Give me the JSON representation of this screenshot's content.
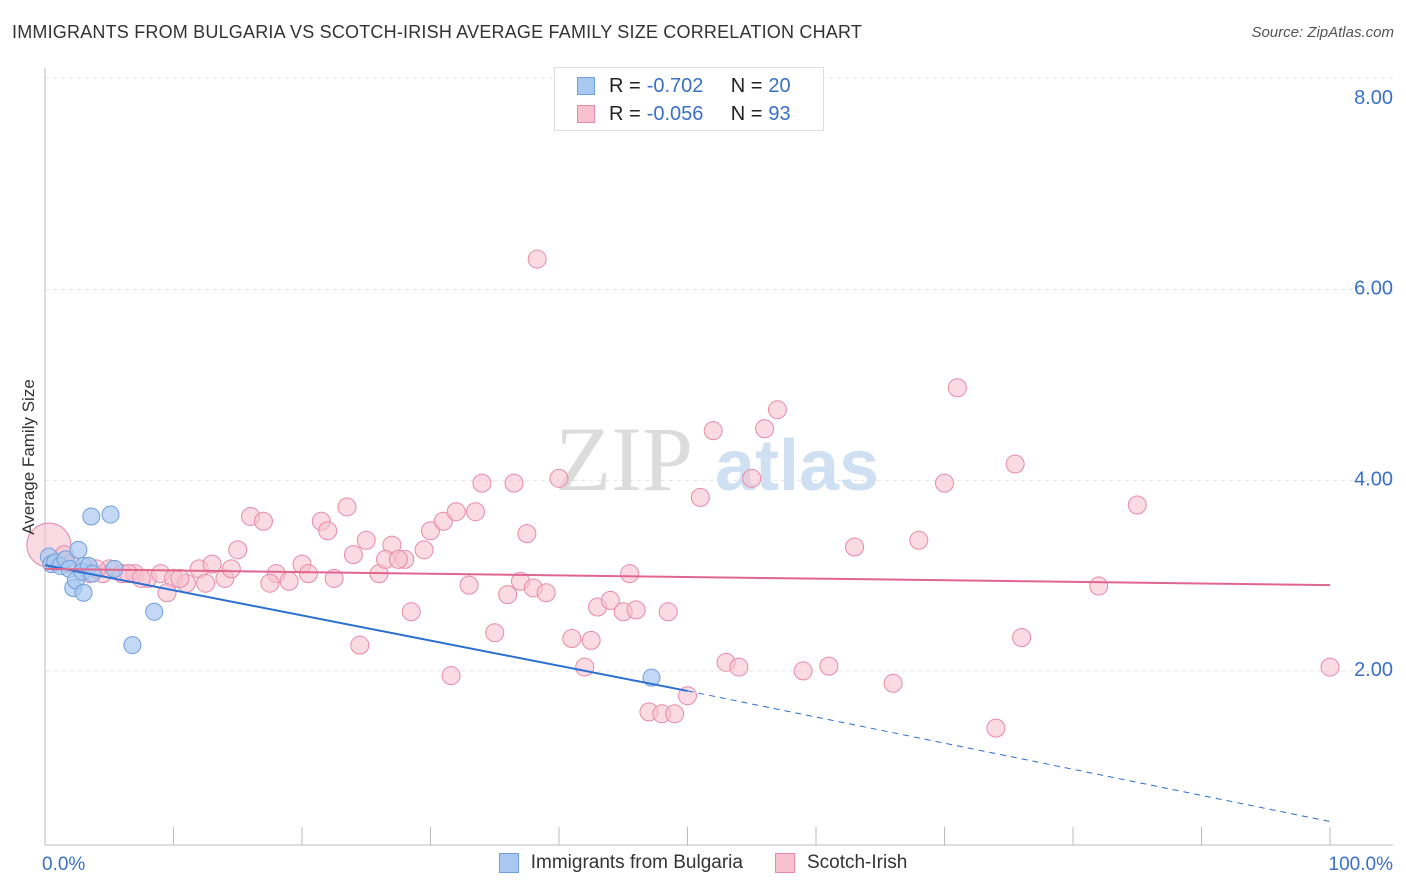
{
  "title": "IMMIGRANTS FROM BULGARIA VS SCOTCH-IRISH AVERAGE FAMILY SIZE CORRELATION CHART",
  "source": "Source: ZipAtlas.com",
  "watermark": {
    "zip": "ZIP",
    "atlas": "atlas"
  },
  "stats": [
    {
      "r_label": "R =",
      "r_value": "-0.702",
      "n_label": "N =",
      "n_value": "20",
      "color": "#a9c8f0",
      "border": "#6f9fdc"
    },
    {
      "r_label": "R =",
      "r_value": "-0.056",
      "n_label": "N =",
      "n_value": "93",
      "color": "#f7c1d1",
      "border": "#e88aa8"
    }
  ],
  "legend": [
    {
      "label": "Immigrants from Bulgaria",
      "color": "#a9c8f0",
      "border": "#6f9fdc"
    },
    {
      "label": "Scotch-Irish",
      "color": "#f7c1d1",
      "border": "#e88aa8"
    }
  ],
  "chart_data": {
    "type": "scatter",
    "title": "IMMIGRANTS FROM BULGARIA VS SCOTCH-IRISH AVERAGE FAMILY SIZE CORRELATION CHART",
    "xlabel": "",
    "ylabel": "Average Family Size",
    "xlim": [
      0,
      100
    ],
    "ylim": [
      0.35,
      8.2
    ],
    "x_tick_labels": [
      "0.0%",
      "100.0%"
    ],
    "y_ticks": [
      2.0,
      4.0,
      6.0,
      8.0
    ],
    "y_tick_labels": [
      "2.00",
      "4.00",
      "6.00",
      "8.00"
    ],
    "grid": true,
    "series": [
      {
        "name": "Immigrants from Bulgaria",
        "color": "#6f9fdc",
        "fill": "#a9c8f0",
        "line_color": "#2a6fd1",
        "points": [
          [
            0.3,
            3.18
          ],
          [
            0.5,
            3.1
          ],
          [
            0.8,
            3.12
          ],
          [
            1.2,
            3.08
          ],
          [
            1.6,
            3.15
          ],
          [
            1.9,
            3.05
          ],
          [
            2.2,
            2.85
          ],
          [
            2.4,
            2.93
          ],
          [
            2.6,
            3.25
          ],
          [
            3.0,
            3.08
          ],
          [
            2.9,
            3.02
          ],
          [
            3.0,
            2.8
          ],
          [
            3.4,
            3.08
          ],
          [
            3.7,
            3.0
          ],
          [
            3.6,
            3.6
          ],
          [
            5.1,
            3.62
          ],
          [
            5.4,
            3.05
          ],
          [
            8.5,
            2.6
          ],
          [
            6.8,
            2.25
          ],
          [
            47.2,
            1.91
          ]
        ],
        "trend": {
          "x": [
            0,
            50
          ],
          "y": [
            3.09,
            1.77
          ],
          "dashed_to": [
            100,
            0.4
          ]
        }
      },
      {
        "name": "Scotch-Irish",
        "color": "#e88aa8",
        "fill": "#f7c1d1",
        "line_color": "#e0668e",
        "points": [
          [
            0.3,
            3.3
          ],
          [
            1.5,
            3.2
          ],
          [
            2.0,
            3.1
          ],
          [
            3.5,
            3.0
          ],
          [
            4.5,
            3.0
          ],
          [
            5.0,
            3.05
          ],
          [
            6.0,
            3.0
          ],
          [
            7.0,
            3.0
          ],
          [
            8.0,
            2.95
          ],
          [
            9.0,
            3.0
          ],
          [
            10.0,
            2.95
          ],
          [
            11.0,
            2.9
          ],
          [
            12.0,
            3.05
          ],
          [
            13.0,
            3.1
          ],
          [
            14.0,
            2.95
          ],
          [
            15.0,
            3.25
          ],
          [
            16.0,
            3.6
          ],
          [
            17.0,
            3.55
          ],
          [
            18.0,
            3.0
          ],
          [
            19.0,
            2.92
          ],
          [
            20.0,
            3.1
          ],
          [
            21.5,
            3.55
          ],
          [
            22.0,
            3.45
          ],
          [
            23.5,
            3.7
          ],
          [
            24.0,
            3.2
          ],
          [
            25.0,
            3.35
          ],
          [
            26.0,
            3.0
          ],
          [
            27.0,
            3.3
          ],
          [
            28.0,
            3.15
          ],
          [
            28.5,
            2.6
          ],
          [
            30.0,
            3.45
          ],
          [
            31.0,
            3.55
          ],
          [
            32.0,
            3.65
          ],
          [
            33.0,
            2.88
          ],
          [
            34.0,
            3.95
          ],
          [
            35.0,
            2.38
          ],
          [
            36.0,
            2.78
          ],
          [
            37.0,
            2.92
          ],
          [
            37.5,
            3.42
          ],
          [
            38.0,
            2.85
          ],
          [
            31.6,
            1.93
          ],
          [
            40.0,
            4.0
          ],
          [
            41.0,
            2.32
          ],
          [
            42.0,
            2.02
          ],
          [
            43.0,
            2.65
          ],
          [
            44.0,
            2.72
          ],
          [
            45.0,
            2.6
          ],
          [
            46.0,
            2.62
          ],
          [
            47.0,
            1.55
          ],
          [
            48.0,
            1.53
          ],
          [
            49.0,
            1.53
          ],
          [
            50.0,
            1.72
          ],
          [
            38.3,
            6.3
          ],
          [
            51.0,
            3.8
          ],
          [
            52.0,
            4.5
          ],
          [
            53.0,
            2.07
          ],
          [
            54.0,
            2.02
          ],
          [
            55.0,
            4.0
          ],
          [
            56.0,
            4.52
          ],
          [
            57.0,
            4.72
          ],
          [
            59.0,
            1.98
          ],
          [
            61.0,
            2.03
          ],
          [
            63.0,
            3.28
          ],
          [
            66.0,
            1.85
          ],
          [
            68.0,
            3.35
          ],
          [
            70.0,
            3.95
          ],
          [
            71.0,
            4.95
          ],
          [
            74.0,
            1.38
          ],
          [
            76.0,
            2.33
          ],
          [
            75.5,
            4.15
          ],
          [
            82.0,
            2.87
          ],
          [
            85.0,
            3.72
          ],
          [
            100.0,
            2.02
          ],
          [
            9.5,
            2.8
          ],
          [
            6.5,
            3.0
          ],
          [
            4.0,
            3.05
          ],
          [
            12.5,
            2.9
          ],
          [
            17.5,
            2.9
          ],
          [
            20.5,
            3.0
          ],
          [
            22.5,
            2.95
          ],
          [
            24.5,
            2.25
          ],
          [
            26.5,
            3.15
          ],
          [
            27.5,
            3.15
          ],
          [
            29.5,
            3.25
          ],
          [
            33.5,
            3.65
          ],
          [
            36.5,
            3.95
          ],
          [
            39.0,
            2.8
          ],
          [
            42.5,
            2.3
          ],
          [
            45.5,
            3.0
          ],
          [
            48.5,
            2.6
          ],
          [
            7.5,
            2.95
          ],
          [
            10.5,
            2.95
          ],
          [
            14.5,
            3.05
          ]
        ],
        "trend": {
          "x": [
            0,
            100
          ],
          "y": [
            3.05,
            2.88
          ]
        }
      }
    ]
  }
}
